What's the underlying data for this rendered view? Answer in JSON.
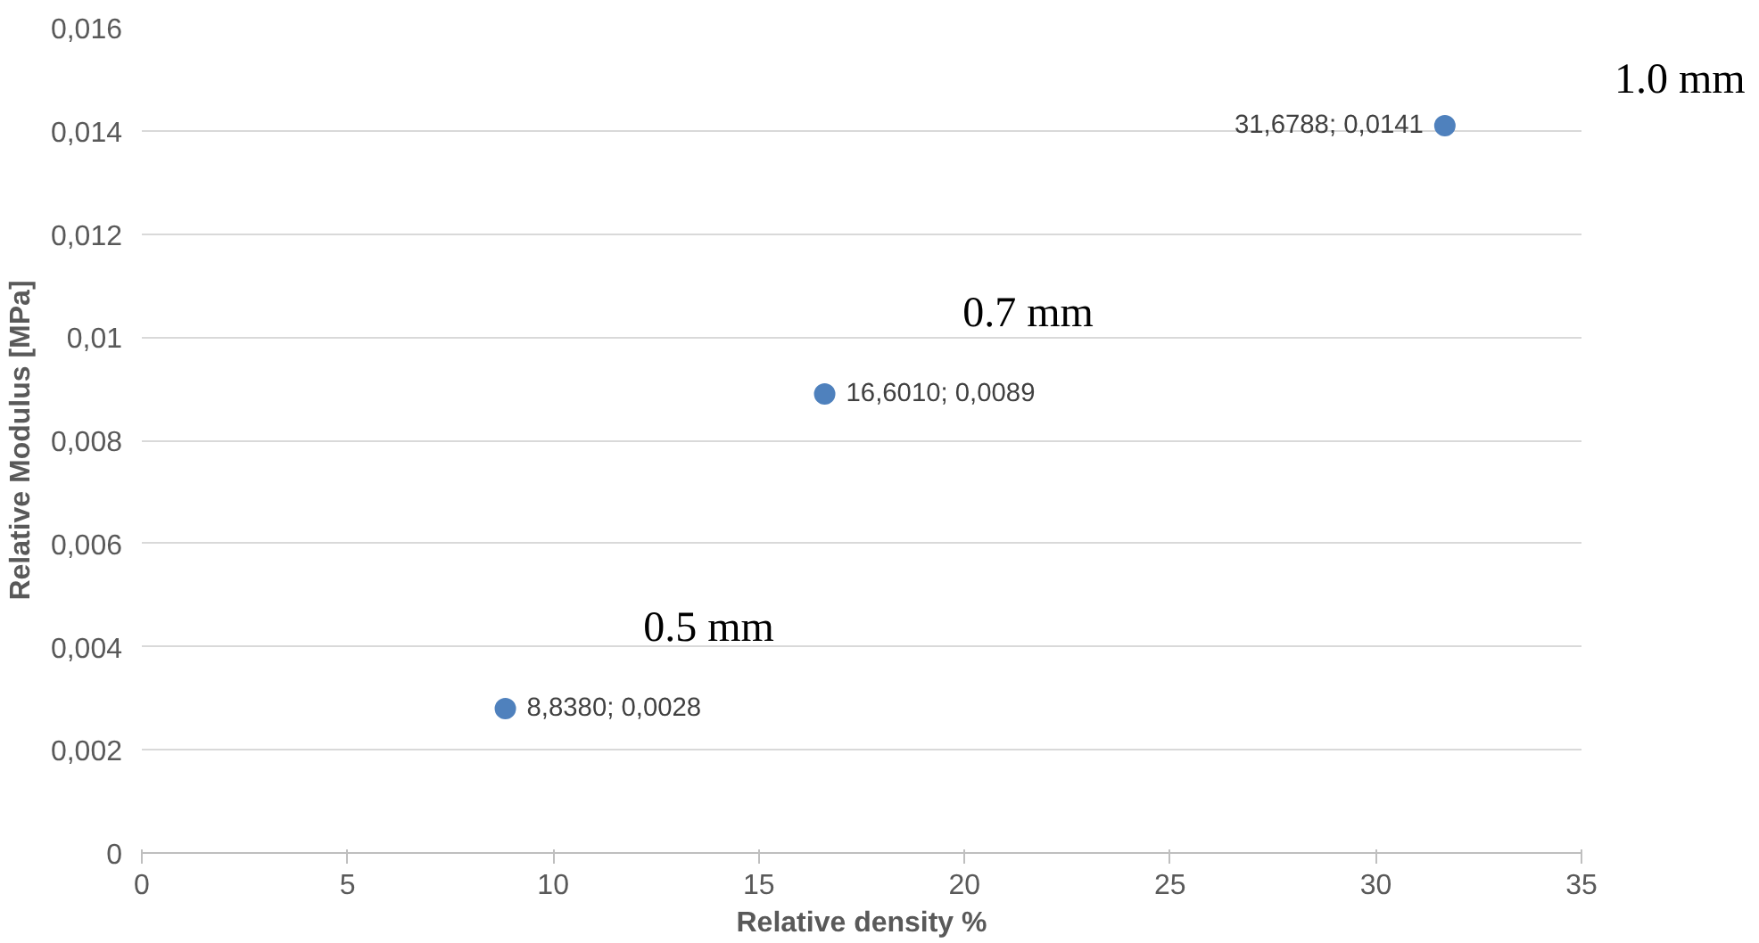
{
  "chart_data": {
    "type": "scatter",
    "xlabel": "Relative density %",
    "ylabel": "Relative Modulus [MPa]",
    "x": [
      8.838,
      16.601,
      31.6788
    ],
    "series": [
      {
        "color": "#4f81bd",
        "values": [
          0.0028,
          0.0089,
          0.0141
        ],
        "value_labels": [
          "8,8380; 0,0028",
          "16,6010; 0,0089",
          "31,6788; 0,0141"
        ]
      }
    ],
    "xlim": [
      0,
      35
    ],
    "xticks": [
      0,
      5,
      10,
      15,
      20,
      25,
      30,
      35
    ],
    "ylim": [
      0,
      0.016
    ],
    "yticks": [
      0,
      {
        "value": 0.002,
        "label": "0,002"
      },
      {
        "value": 0.004,
        "label": "0,004"
      },
      {
        "value": 0.006,
        "label": "0,006"
      },
      {
        "value": 0.008,
        "label": "0,008"
      },
      {
        "value": 0.01,
        "label": "0,01"
      },
      {
        "value": 0.012,
        "label": "0,012"
      },
      {
        "value": 0.014,
        "label": "0,014"
      },
      {
        "value": 0.016,
        "label": "0,016"
      }
    ],
    "annotations": [
      "0.5 mm",
      "0.7 mm",
      "1.0 mm"
    ],
    "grid": "y",
    "marker": "circle"
  }
}
